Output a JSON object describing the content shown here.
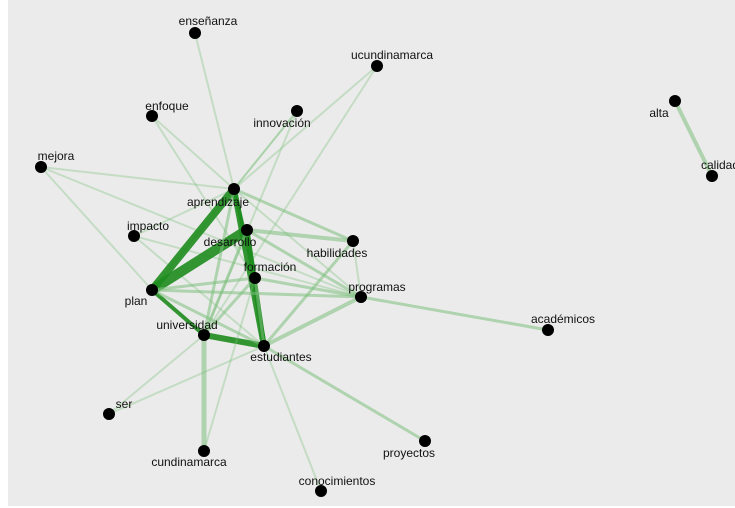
{
  "nodes": [
    {
      "label": "enseñanza"
    },
    {
      "label": "ucundinamarca"
    },
    {
      "label": "enfoque"
    },
    {
      "label": "innovación"
    },
    {
      "label": "mejora"
    },
    {
      "label": "aprendizaje"
    },
    {
      "label": "impacto"
    },
    {
      "label": "desarrollo"
    },
    {
      "label": "habilidades"
    },
    {
      "label": "formación"
    },
    {
      "label": "programas"
    },
    {
      "label": "plan"
    },
    {
      "label": "universidad"
    },
    {
      "label": "estudiantes"
    },
    {
      "label": "académicos"
    },
    {
      "label": "ser"
    },
    {
      "label": "cundinamarca"
    },
    {
      "label": "proyectos"
    },
    {
      "label": "conocimientos"
    },
    {
      "label": "alta"
    },
    {
      "label": "calidad"
    }
  ]
}
